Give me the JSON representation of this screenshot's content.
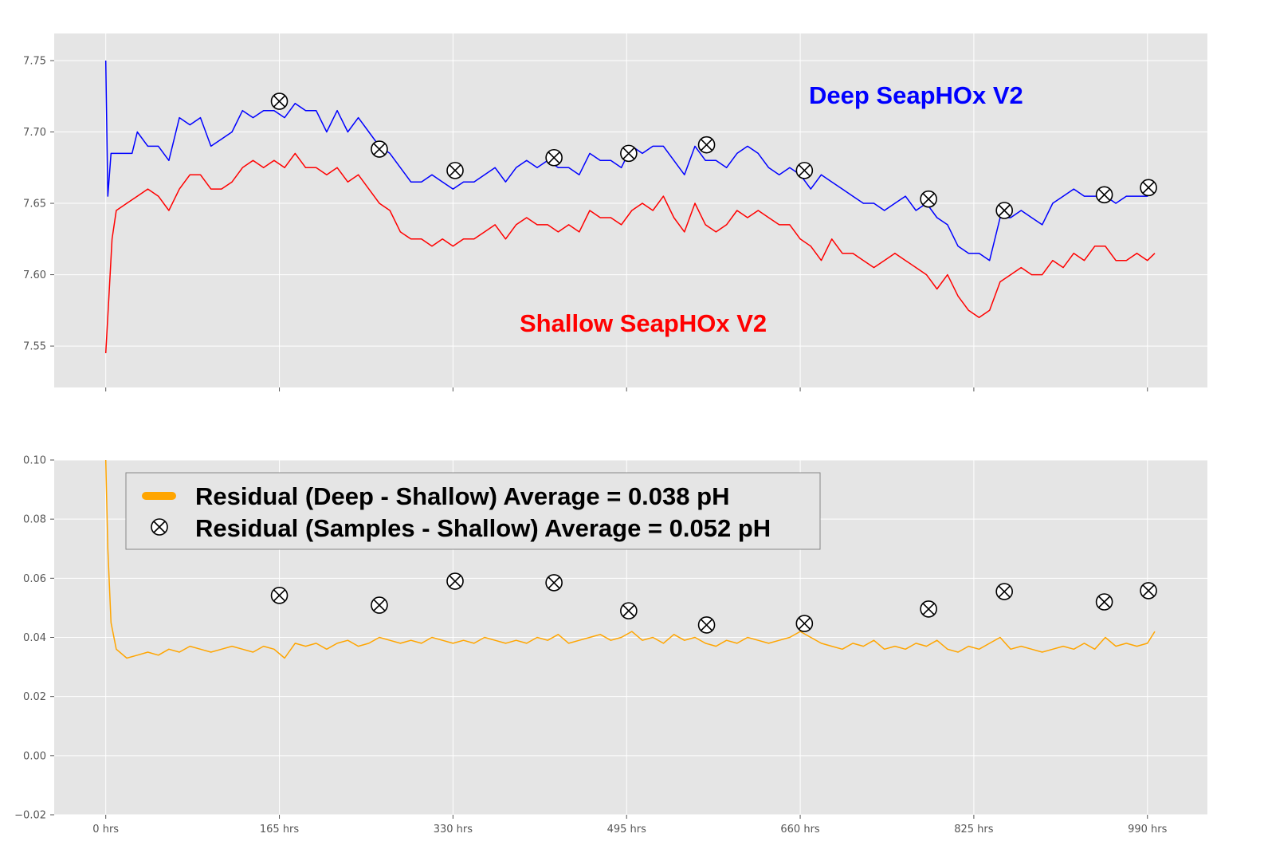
{
  "chart_data": [
    {
      "type": "line",
      "xlim": [
        -49,
        1047
      ],
      "ylim": [
        7.521,
        7.769
      ],
      "yticks": [
        "7.55",
        "7.60",
        "7.65",
        "7.70",
        "7.75"
      ],
      "xticks": [
        0,
        165,
        330,
        495,
        660,
        825,
        990
      ],
      "xtick_labels_shown": false,
      "grid": true,
      "annotations": [
        {
          "text": "Deep SeapHOx V2",
          "color": "#0000ff"
        },
        {
          "text": "Shallow SeapHOx V2",
          "color": "#ff0000"
        }
      ],
      "series": [
        {
          "color": "#0000ff",
          "x": [
            0,
            2,
            5,
            15,
            25,
            30,
            40,
            50,
            60,
            70,
            80,
            90,
            100,
            110,
            120,
            130,
            140,
            150,
            160,
            170,
            180,
            190,
            200,
            210,
            220,
            230,
            240,
            250,
            260,
            270,
            280,
            290,
            300,
            310,
            320,
            330,
            340,
            350,
            360,
            370,
            380,
            390,
            400,
            410,
            420,
            430,
            440,
            450,
            460,
            470,
            480,
            490,
            500,
            510,
            520,
            530,
            540,
            550,
            560,
            570,
            580,
            590,
            600,
            610,
            620,
            630,
            640,
            650,
            660,
            670,
            680,
            690,
            700,
            710,
            720,
            730,
            740,
            750,
            760,
            770,
            780,
            790,
            800,
            810,
            820,
            830,
            840,
            850,
            860,
            870,
            880,
            890,
            900,
            910,
            920,
            930,
            940,
            950,
            960,
            970,
            980,
            990,
            997
          ],
          "y": [
            7.75,
            7.655,
            7.685,
            7.685,
            7.685,
            7.7,
            7.69,
            7.69,
            7.68,
            7.71,
            7.705,
            7.71,
            7.69,
            7.695,
            7.7,
            7.715,
            7.71,
            7.715,
            7.715,
            7.71,
            7.72,
            7.715,
            7.715,
            7.7,
            7.715,
            7.7,
            7.71,
            7.7,
            7.69,
            7.685,
            7.675,
            7.665,
            7.665,
            7.67,
            7.665,
            7.66,
            7.665,
            7.665,
            7.67,
            7.675,
            7.665,
            7.675,
            7.68,
            7.675,
            7.68,
            7.675,
            7.675,
            7.67,
            7.685,
            7.68,
            7.68,
            7.675,
            7.69,
            7.685,
            7.69,
            7.69,
            7.68,
            7.67,
            7.69,
            7.68,
            7.68,
            7.675,
            7.685,
            7.69,
            7.685,
            7.675,
            7.67,
            7.675,
            7.67,
            7.66,
            7.67,
            7.665,
            7.66,
            7.655,
            7.65,
            7.65,
            7.645,
            7.65,
            7.655,
            7.645,
            7.65,
            7.64,
            7.635,
            7.62,
            7.615,
            7.615,
            7.61,
            7.64,
            7.64,
            7.645,
            7.64,
            7.635,
            7.65,
            7.655,
            7.66,
            7.655,
            7.655,
            7.655,
            7.65,
            7.655,
            7.655,
            7.655,
            7.66
          ]
        },
        {
          "color": "#ff0000",
          "x": [
            0,
            3,
            6,
            10,
            20,
            30,
            40,
            50,
            60,
            70,
            80,
            90,
            100,
            110,
            120,
            130,
            140,
            150,
            160,
            170,
            180,
            190,
            200,
            210,
            220,
            230,
            240,
            250,
            260,
            270,
            280,
            290,
            300,
            310,
            320,
            330,
            340,
            350,
            360,
            370,
            380,
            390,
            400,
            410,
            420,
            430,
            440,
            450,
            460,
            470,
            480,
            490,
            500,
            510,
            520,
            530,
            540,
            550,
            560,
            570,
            580,
            590,
            600,
            610,
            620,
            630,
            640,
            650,
            660,
            670,
            680,
            690,
            700,
            710,
            720,
            730,
            740,
            750,
            760,
            770,
            780,
            790,
            800,
            810,
            820,
            830,
            840,
            850,
            860,
            870,
            880,
            890,
            900,
            910,
            920,
            930,
            940,
            950,
            960,
            970,
            980,
            990,
            997
          ],
          "y": [
            7.545,
            7.585,
            7.625,
            7.645,
            7.65,
            7.655,
            7.66,
            7.655,
            7.645,
            7.66,
            7.67,
            7.67,
            7.66,
            7.66,
            7.665,
            7.675,
            7.68,
            7.675,
            7.68,
            7.675,
            7.685,
            7.675,
            7.675,
            7.67,
            7.675,
            7.665,
            7.67,
            7.66,
            7.65,
            7.645,
            7.63,
            7.625,
            7.625,
            7.62,
            7.625,
            7.62,
            7.625,
            7.625,
            7.63,
            7.635,
            7.625,
            7.635,
            7.64,
            7.635,
            7.635,
            7.63,
            7.635,
            7.63,
            7.645,
            7.64,
            7.64,
            7.635,
            7.645,
            7.65,
            7.645,
            7.655,
            7.64,
            7.63,
            7.65,
            7.635,
            7.63,
            7.635,
            7.645,
            7.64,
            7.645,
            7.64,
            7.635,
            7.635,
            7.625,
            7.62,
            7.61,
            7.625,
            7.615,
            7.615,
            7.61,
            7.605,
            7.61,
            7.615,
            7.61,
            7.605,
            7.6,
            7.59,
            7.6,
            7.585,
            7.575,
            7.57,
            7.575,
            7.595,
            7.6,
            7.605,
            7.6,
            7.6,
            7.61,
            7.605,
            7.615,
            7.61,
            7.62,
            7.62,
            7.61,
            7.61,
            7.615,
            7.61,
            7.615
          ]
        },
        {
          "type": "scatter",
          "marker": "circle-x",
          "x": [
            165,
            260,
            332,
            426,
            497,
            571,
            664,
            782,
            854,
            949,
            991
          ],
          "y": [
            7.7215,
            7.688,
            7.673,
            7.682,
            7.685,
            7.691,
            7.673,
            7.653,
            7.645,
            7.656,
            7.661
          ]
        }
      ]
    },
    {
      "type": "line",
      "xlim": [
        -49,
        1047
      ],
      "ylim": [
        -0.02,
        0.1
      ],
      "yticks": [
        "−0.02",
        "0.00",
        "0.02",
        "0.04",
        "0.06",
        "0.08",
        "0.10"
      ],
      "ytick_values": [
        -0.02,
        0.0,
        0.02,
        0.04,
        0.06,
        0.08,
        0.1
      ],
      "xticks": [
        0,
        165,
        330,
        495,
        660,
        825,
        990
      ],
      "xtick_labels": [
        "0 hrs",
        "165 hrs",
        "330 hrs",
        "495 hrs",
        "660 hrs",
        "825 hrs",
        "990 hrs"
      ],
      "grid": true,
      "legend": {
        "placement": "upper-left",
        "entries": [
          "Residual (Deep - Shallow) Average = 0.038 pH",
          "Residual (Samples - Shallow) Average = 0.052 pH"
        ]
      },
      "series": [
        {
          "name": "Residual (Deep - Shallow) Average = 0.038 pH",
          "color": "#ffa500",
          "x": [
            0,
            2,
            5,
            10,
            20,
            30,
            40,
            50,
            60,
            70,
            80,
            90,
            100,
            110,
            120,
            130,
            140,
            150,
            160,
            170,
            180,
            190,
            200,
            210,
            220,
            230,
            240,
            250,
            260,
            270,
            280,
            290,
            300,
            310,
            320,
            330,
            340,
            350,
            360,
            370,
            380,
            390,
            400,
            410,
            420,
            430,
            440,
            450,
            460,
            470,
            480,
            490,
            500,
            510,
            520,
            530,
            540,
            550,
            560,
            570,
            580,
            590,
            600,
            610,
            620,
            630,
            640,
            650,
            660,
            670,
            680,
            690,
            700,
            710,
            720,
            730,
            740,
            750,
            760,
            770,
            780,
            790,
            800,
            810,
            820,
            830,
            840,
            850,
            860,
            870,
            880,
            890,
            900,
            910,
            920,
            930,
            940,
            950,
            960,
            970,
            980,
            990,
            997
          ],
          "y": [
            0.1,
            0.07,
            0.045,
            0.036,
            0.033,
            0.034,
            0.035,
            0.034,
            0.036,
            0.035,
            0.037,
            0.036,
            0.035,
            0.036,
            0.037,
            0.036,
            0.035,
            0.037,
            0.036,
            0.033,
            0.038,
            0.037,
            0.038,
            0.036,
            0.038,
            0.039,
            0.037,
            0.038,
            0.04,
            0.039,
            0.038,
            0.039,
            0.038,
            0.04,
            0.039,
            0.038,
            0.039,
            0.038,
            0.04,
            0.039,
            0.038,
            0.039,
            0.038,
            0.04,
            0.039,
            0.041,
            0.038,
            0.039,
            0.04,
            0.041,
            0.039,
            0.04,
            0.042,
            0.039,
            0.04,
            0.038,
            0.041,
            0.039,
            0.04,
            0.038,
            0.037,
            0.039,
            0.038,
            0.04,
            0.039,
            0.038,
            0.039,
            0.04,
            0.042,
            0.04,
            0.038,
            0.037,
            0.036,
            0.038,
            0.037,
            0.039,
            0.036,
            0.037,
            0.036,
            0.038,
            0.037,
            0.039,
            0.036,
            0.035,
            0.037,
            0.036,
            0.038,
            0.04,
            0.036,
            0.037,
            0.036,
            0.035,
            0.036,
            0.037,
            0.036,
            0.038,
            0.036,
            0.04,
            0.037,
            0.038,
            0.037,
            0.038,
            0.042
          ]
        },
        {
          "name": "Residual (Samples - Shallow) Average = 0.052 pH",
          "type": "scatter",
          "marker": "circle-x",
          "x": [
            165,
            260,
            332,
            426,
            497,
            571,
            664,
            782,
            854,
            949,
            991
          ],
          "y": [
            0.0542,
            0.0509,
            0.059,
            0.0585,
            0.049,
            0.0442,
            0.0447,
            0.0496,
            0.0555,
            0.052,
            0.0558
          ]
        }
      ]
    }
  ]
}
